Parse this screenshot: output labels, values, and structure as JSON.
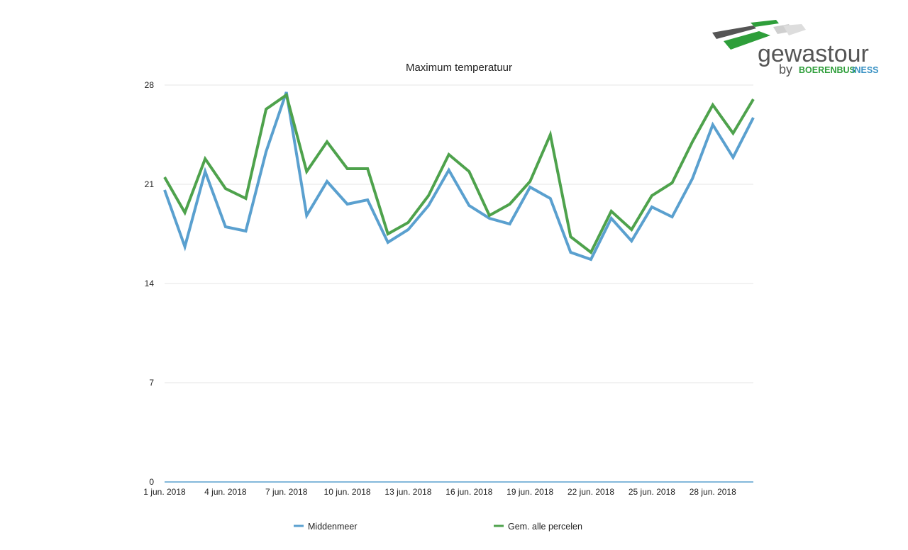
{
  "logo": {
    "word": "gewastour",
    "by": "by",
    "brand_part1": "BOERENBUS",
    "brand_part2": "INESS"
  },
  "colors": {
    "series_blue": "#5aa0cf",
    "series_green": "#4ea24c",
    "grid": "#e6e6e6",
    "axis": "#5aa0cf",
    "logo_dark": "#555555",
    "logo_green": "#2e9e3a",
    "logo_gray": "#cfcfcf"
  },
  "chart_data": {
    "type": "line",
    "title": "Maximum temperatuur",
    "xlabel": "",
    "ylabel": "",
    "x": [
      "1 jun. 2018",
      "2 jun. 2018",
      "3 jun. 2018",
      "4 jun. 2018",
      "5 jun. 2018",
      "6 jun. 2018",
      "7 jun. 2018",
      "8 jun. 2018",
      "9 jun. 2018",
      "10 jun. 2018",
      "11 jun. 2018",
      "12 jun. 2018",
      "13 jun. 2018",
      "14 jun. 2018",
      "15 jun. 2018",
      "16 jun. 2018",
      "17 jun. 2018",
      "18 jun. 2018",
      "19 jun. 2018",
      "20 jun. 2018",
      "21 jun. 2018",
      "22 jun. 2018",
      "23 jun. 2018",
      "24 jun. 2018",
      "25 jun. 2018",
      "26 jun. 2018",
      "27 jun. 2018",
      "28 jun. 2018",
      "29 jun. 2018",
      "30 jun. 2018"
    ],
    "x_tick_labels": [
      "1 jun. 2018",
      "4 jun. 2018",
      "7 jun. 2018",
      "10 jun. 2018",
      "13 jun. 2018",
      "16 jun. 2018",
      "19 jun. 2018",
      "22 jun. 2018",
      "25 jun. 2018",
      "28 jun. 2018"
    ],
    "x_tick_indices": [
      0,
      3,
      6,
      9,
      12,
      15,
      18,
      21,
      24,
      27
    ],
    "y_ticks": [
      "0",
      "7",
      "14",
      "21",
      "28"
    ],
    "ylim": [
      0,
      28
    ],
    "grid": true,
    "legend_placement": "bottom",
    "series": [
      {
        "name": "Middenmeer",
        "color": "#5aa0cf",
        "values": [
          20.6,
          16.6,
          21.9,
          18.0,
          17.7,
          23.3,
          27.5,
          18.8,
          21.2,
          19.6,
          19.9,
          16.9,
          17.8,
          19.5,
          22.0,
          19.5,
          18.6,
          18.2,
          20.8,
          20.0,
          16.2,
          15.7,
          18.6,
          17.0,
          19.4,
          18.7,
          21.4,
          25.2,
          22.9,
          25.7
        ]
      },
      {
        "name": "Gem. alle percelen",
        "color": "#4ea24c",
        "values": [
          21.5,
          19.0,
          22.8,
          20.7,
          20.0,
          26.3,
          27.3,
          21.9,
          24.0,
          22.1,
          22.1,
          17.5,
          18.3,
          20.2,
          23.1,
          21.9,
          18.8,
          19.6,
          21.2,
          24.5,
          17.3,
          16.2,
          19.1,
          17.8,
          20.2,
          21.1,
          24.0,
          26.6,
          24.6,
          27.0
        ]
      }
    ]
  }
}
